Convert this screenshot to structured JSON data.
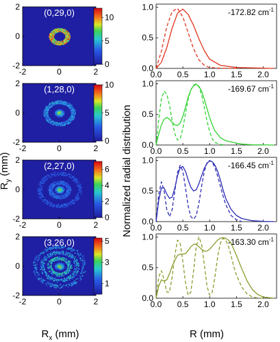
{
  "figure": {
    "shared_left_ylabel_main": "R",
    "shared_left_ylabel_sub": "y",
    "shared_left_ylabel_unit": " (mm)",
    "shared_left_xlabel_main": "R",
    "shared_left_xlabel_sub": "x",
    "shared_left_xlabel_unit": " (mm)",
    "shared_right_ylabel": "Normalized radial distribution",
    "shared_right_xlabel": "R (mm)"
  },
  "colors": {
    "background_blue": "#1f1fa3",
    "panel1": "#e0341c",
    "panel2": "#2fd22f",
    "panel3": "#2a2ab4",
    "panel4": "#8a9a2a"
  },
  "chart_data": [
    {
      "type": "heatmap",
      "label": "(0,29,0)",
      "xlim": [
        -2,
        2
      ],
      "ylim": [
        -2,
        2
      ],
      "x_ticks": [
        "-2",
        "0",
        "2"
      ],
      "y_ticks": [
        "-2",
        "0",
        "2"
      ],
      "colorbar_ticks": [
        "0",
        "5",
        "10"
      ],
      "colorbar_range": [
        0,
        12
      ],
      "rings": [
        {
          "radius": 0.45,
          "intensity": 1.0
        }
      ]
    },
    {
      "type": "line",
      "annotation": "-172.82 cm",
      "annotation_sup": "-1",
      "color": "#e0341c",
      "xlim": [
        0,
        2.25
      ],
      "ylim": [
        0,
        1.05
      ],
      "x_ticks": [
        "0.0",
        "0.5",
        "1.0",
        "1.5",
        "2.0"
      ],
      "y_ticks": [
        "0.0",
        "0.5",
        "1.0"
      ],
      "series": [
        {
          "style": "solid",
          "x": [
            0,
            0.1,
            0.2,
            0.3,
            0.4,
            0.5,
            0.6,
            0.7,
            0.8,
            0.9,
            1.0,
            1.2,
            1.5,
            2.0,
            2.2
          ],
          "y": [
            0,
            0.1,
            0.34,
            0.66,
            0.9,
            0.97,
            0.88,
            0.7,
            0.48,
            0.29,
            0.15,
            0.05,
            0.015,
            0.005,
            0
          ]
        },
        {
          "style": "dashed",
          "x": [
            0,
            0.1,
            0.2,
            0.3,
            0.4,
            0.5,
            0.6,
            0.7,
            0.8,
            0.9,
            1.0,
            1.2,
            1.5
          ],
          "y": [
            0,
            0.28,
            0.68,
            0.93,
            0.98,
            0.84,
            0.58,
            0.32,
            0.14,
            0.05,
            0.015,
            0.003,
            0
          ]
        }
      ]
    },
    {
      "type": "heatmap",
      "label": "(1,28,0)",
      "xlim": [
        -2,
        2
      ],
      "ylim": [
        -2,
        2
      ],
      "x_ticks": [
        "-2",
        "0",
        "2"
      ],
      "y_ticks": [
        "-2",
        "0",
        "2"
      ],
      "colorbar_ticks": [
        "0",
        "5",
        "10"
      ],
      "colorbar_range": [
        0,
        10
      ],
      "rings": [
        {
          "radius": 0.0,
          "intensity": 1.0
        },
        {
          "radius": 0.75,
          "intensity": 0.45
        }
      ]
    },
    {
      "type": "line",
      "annotation": "-169.67 cm",
      "annotation_sup": "-1",
      "color": "#2fd22f",
      "xlim": [
        0,
        2.25
      ],
      "ylim": [
        0,
        1.05
      ],
      "x_ticks": [
        "0.0",
        "0.5",
        "1.0",
        "1.5",
        "2.0"
      ],
      "y_ticks": [
        "0.0",
        "0.5",
        "1.0"
      ],
      "series": [
        {
          "style": "solid",
          "x": [
            0,
            0.05,
            0.1,
            0.15,
            0.2,
            0.25,
            0.3,
            0.35,
            0.4,
            0.45,
            0.5,
            0.55,
            0.6,
            0.65,
            0.7,
            0.75,
            0.8,
            0.85,
            0.9,
            0.95,
            1.0,
            1.05,
            1.1,
            1.2,
            1.3,
            1.4,
            1.5,
            1.6,
            1.8,
            2.0,
            2.2
          ],
          "y": [
            0,
            0.18,
            0.33,
            0.42,
            0.45,
            0.42,
            0.37,
            0.33,
            0.32,
            0.36,
            0.47,
            0.62,
            0.78,
            0.9,
            0.97,
            0.99,
            0.96,
            0.88,
            0.75,
            0.6,
            0.45,
            0.33,
            0.23,
            0.12,
            0.07,
            0.05,
            0.03,
            0.015,
            0.005,
            0.002,
            0
          ]
        },
        {
          "style": "dashed",
          "x": [
            0,
            0.05,
            0.1,
            0.15,
            0.2,
            0.25,
            0.3,
            0.35,
            0.4,
            0.45,
            0.5,
            0.55,
            0.6,
            0.65,
            0.7,
            0.75,
            0.8,
            0.85,
            0.9,
            0.95,
            1.0,
            1.05,
            1.1,
            1.2,
            1.3
          ],
          "y": [
            0,
            0.42,
            0.76,
            0.88,
            0.83,
            0.65,
            0.4,
            0.18,
            0.08,
            0.1,
            0.27,
            0.52,
            0.75,
            0.9,
            0.98,
            1.0,
            0.95,
            0.82,
            0.62,
            0.4,
            0.22,
            0.1,
            0.04,
            0.01,
            0
          ]
        }
      ]
    },
    {
      "type": "heatmap",
      "label": "(2,27,0)",
      "xlim": [
        -2,
        2
      ],
      "ylim": [
        -2,
        2
      ],
      "x_ticks": [
        "-2",
        "0",
        "2"
      ],
      "y_ticks": [
        "-2",
        "0",
        "2"
      ],
      "colorbar_ticks": [
        "0",
        "2",
        "4",
        "6"
      ],
      "colorbar_range": [
        0,
        7
      ],
      "rings": [
        {
          "radius": 0.0,
          "intensity": 1.0
        },
        {
          "radius": 0.5,
          "intensity": 0.35
        },
        {
          "radius": 1.1,
          "intensity": 0.3
        }
      ]
    },
    {
      "type": "line",
      "annotation": "-166.45 cm",
      "annotation_sup": "-1",
      "color": "#2a2ab4",
      "xlim": [
        0,
        2.25
      ],
      "ylim": [
        0,
        1.05
      ],
      "x_ticks": [
        "0.0",
        "0.5",
        "1.0",
        "1.5",
        "2.0"
      ],
      "y_ticks": [
        "0.0",
        "0.5",
        "1.0"
      ],
      "series": [
        {
          "style": "solid",
          "x": [
            0,
            0.05,
            0.1,
            0.15,
            0.2,
            0.25,
            0.3,
            0.35,
            0.4,
            0.45,
            0.5,
            0.55,
            0.6,
            0.65,
            0.7,
            0.75,
            0.8,
            0.85,
            0.9,
            0.95,
            1.0,
            1.05,
            1.1,
            1.15,
            1.2,
            1.25,
            1.3,
            1.4,
            1.5,
            1.6,
            1.8,
            2.0,
            2.2
          ],
          "y": [
            0,
            0.35,
            0.55,
            0.55,
            0.45,
            0.38,
            0.4,
            0.55,
            0.75,
            0.88,
            0.9,
            0.82,
            0.68,
            0.56,
            0.5,
            0.52,
            0.62,
            0.75,
            0.87,
            0.95,
            0.99,
            0.98,
            0.92,
            0.82,
            0.68,
            0.52,
            0.38,
            0.2,
            0.1,
            0.05,
            0.015,
            0.005,
            0
          ]
        },
        {
          "style": "dashed",
          "x": [
            0,
            0.05,
            0.1,
            0.15,
            0.2,
            0.25,
            0.3,
            0.35,
            0.4,
            0.45,
            0.5,
            0.55,
            0.6,
            0.65,
            0.7,
            0.75,
            0.8,
            0.85,
            0.9,
            0.95,
            1.0,
            1.05,
            1.1,
            1.15,
            1.2,
            1.25,
            1.3,
            1.4,
            1.5,
            1.6
          ],
          "y": [
            0,
            0.45,
            0.65,
            0.5,
            0.2,
            0.08,
            0.2,
            0.5,
            0.8,
            0.92,
            0.82,
            0.55,
            0.25,
            0.08,
            0.04,
            0.1,
            0.3,
            0.58,
            0.82,
            0.96,
            1.0,
            0.97,
            0.88,
            0.74,
            0.58,
            0.42,
            0.28,
            0.1,
            0.03,
            0
          ]
        }
      ]
    },
    {
      "type": "heatmap",
      "label": "(3,26,0)",
      "xlim": [
        -2,
        2
      ],
      "ylim": [
        -2,
        2
      ],
      "x_ticks": [
        "-2",
        "0",
        "2"
      ],
      "y_ticks": [
        "-2",
        "0",
        "2"
      ],
      "colorbar_ticks": [
        "1",
        "3",
        "5"
      ],
      "colorbar_range": [
        0,
        5.3
      ],
      "rings": [
        {
          "radius": 0.0,
          "intensity": 1.0
        },
        {
          "radius": 0.55,
          "intensity": 0.6
        },
        {
          "radius": 0.95,
          "intensity": 0.5
        },
        {
          "radius": 1.35,
          "intensity": 0.45
        }
      ]
    },
    {
      "type": "line",
      "annotation": "-163.30 cm",
      "annotation_sup": "-1",
      "color": "#8a9a2a",
      "xlim": [
        0,
        2.25
      ],
      "ylim": [
        0,
        1.05
      ],
      "x_ticks": [
        "0.0",
        "0.5",
        "1.0",
        "1.5",
        "2.0"
      ],
      "y_ticks": [
        "0.0",
        "0.5",
        "1.0"
      ],
      "series": [
        {
          "style": "solid",
          "x": [
            0,
            0.05,
            0.1,
            0.15,
            0.2,
            0.25,
            0.3,
            0.35,
            0.4,
            0.45,
            0.5,
            0.55,
            0.6,
            0.65,
            0.7,
            0.75,
            0.8,
            0.85,
            0.9,
            0.95,
            1.0,
            1.05,
            1.1,
            1.15,
            1.2,
            1.25,
            1.3,
            1.35,
            1.4,
            1.45,
            1.5,
            1.6,
            1.7,
            1.8,
            1.9,
            2.0,
            2.2
          ],
          "y": [
            0,
            0.2,
            0.3,
            0.28,
            0.3,
            0.4,
            0.52,
            0.62,
            0.7,
            0.72,
            0.72,
            0.73,
            0.78,
            0.84,
            0.88,
            0.88,
            0.84,
            0.8,
            0.77,
            0.77,
            0.8,
            0.85,
            0.9,
            0.95,
            0.98,
            0.99,
            0.98,
            0.95,
            0.9,
            0.8,
            0.7,
            0.48,
            0.28,
            0.14,
            0.06,
            0.02,
            0
          ]
        },
        {
          "style": "dashed",
          "x": [
            0,
            0.05,
            0.1,
            0.15,
            0.2,
            0.25,
            0.3,
            0.35,
            0.4,
            0.45,
            0.5,
            0.55,
            0.6,
            0.65,
            0.7,
            0.75,
            0.8,
            0.85,
            0.9,
            0.95,
            1.0,
            1.05,
            1.1,
            1.15,
            1.2,
            1.25,
            1.3,
            1.35,
            1.4,
            1.45,
            1.5,
            1.6,
            1.7,
            1.8,
            1.9,
            2.0
          ],
          "y": [
            0,
            0.35,
            0.45,
            0.3,
            0.1,
            0.1,
            0.35,
            0.7,
            0.95,
            0.9,
            0.6,
            0.25,
            0.05,
            0.1,
            0.45,
            0.85,
            1.0,
            0.88,
            0.55,
            0.2,
            0.05,
            0.1,
            0.35,
            0.68,
            0.9,
            0.98,
            0.95,
            0.85,
            0.7,
            0.52,
            0.38,
            0.18,
            0.07,
            0.02,
            0.005,
            0
          ]
        }
      ]
    }
  ]
}
